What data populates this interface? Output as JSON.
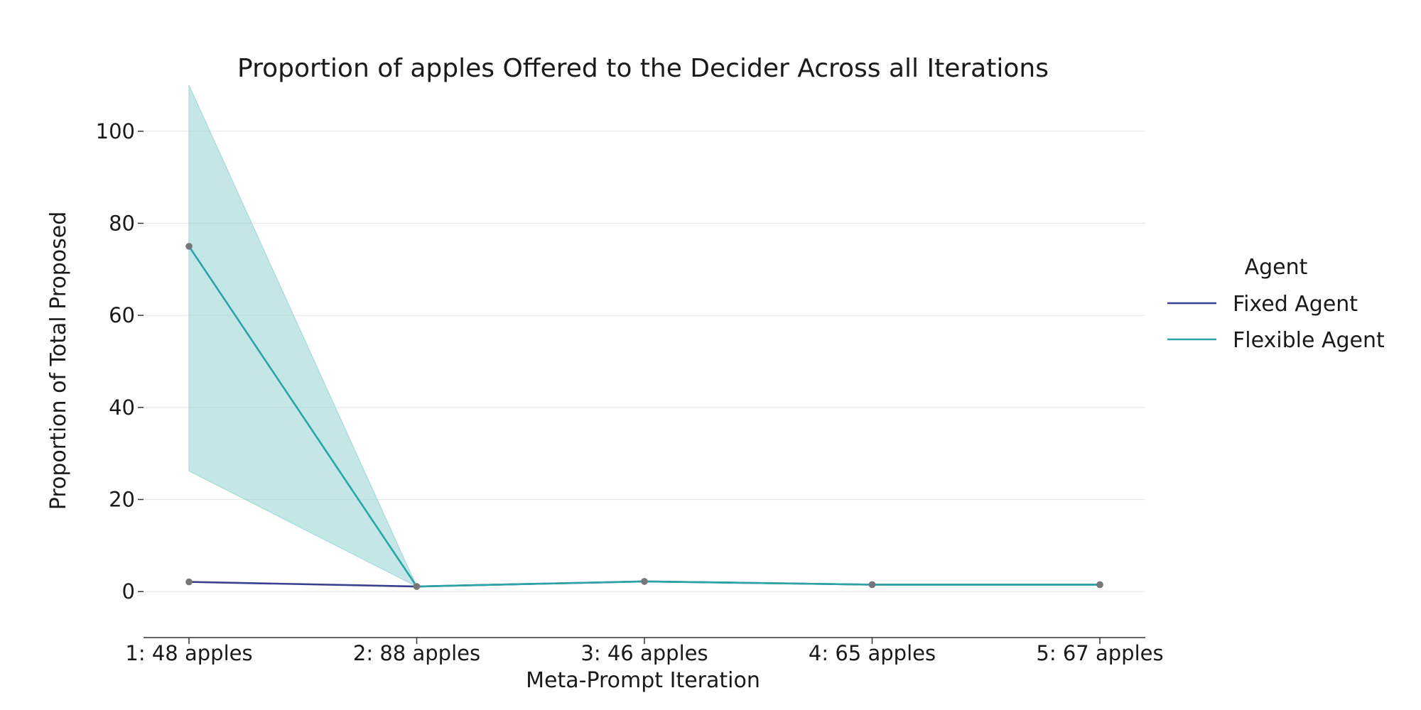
{
  "chart_data": {
    "type": "line",
    "title": "Proportion of apples Offered to the Decider Across all Iterations",
    "xlabel": "Meta-Prompt Iteration",
    "ylabel": "Proportion of Total Proposed",
    "categories": [
      "1: 48 apples",
      "2: 88 apples",
      "3: 46 apples",
      "4: 65 apples",
      "5: 67 apples"
    ],
    "yticks": [
      0,
      20,
      40,
      60,
      80,
      100
    ],
    "ylim": [
      -10,
      110
    ],
    "grid": "horizontal",
    "legend": {
      "title": "Agent",
      "placement": "right"
    },
    "series": [
      {
        "name": "Fixed Agent",
        "color": "#3b3f8f",
        "values": [
          2.1,
          1.1,
          2.2,
          1.5,
          1.5
        ]
      },
      {
        "name": "Flexible Agent",
        "color": "#2aa5a5",
        "band_color": "#9fd6d6",
        "values": [
          75.0,
          1.1,
          2.2,
          1.5,
          1.5
        ],
        "ci_lower": [
          26.2,
          1.1,
          2.2,
          1.5,
          1.5
        ],
        "ci_upper": [
          110,
          1.1,
          2.2,
          1.5,
          1.5
        ]
      }
    ],
    "marker_color": "#777777"
  }
}
